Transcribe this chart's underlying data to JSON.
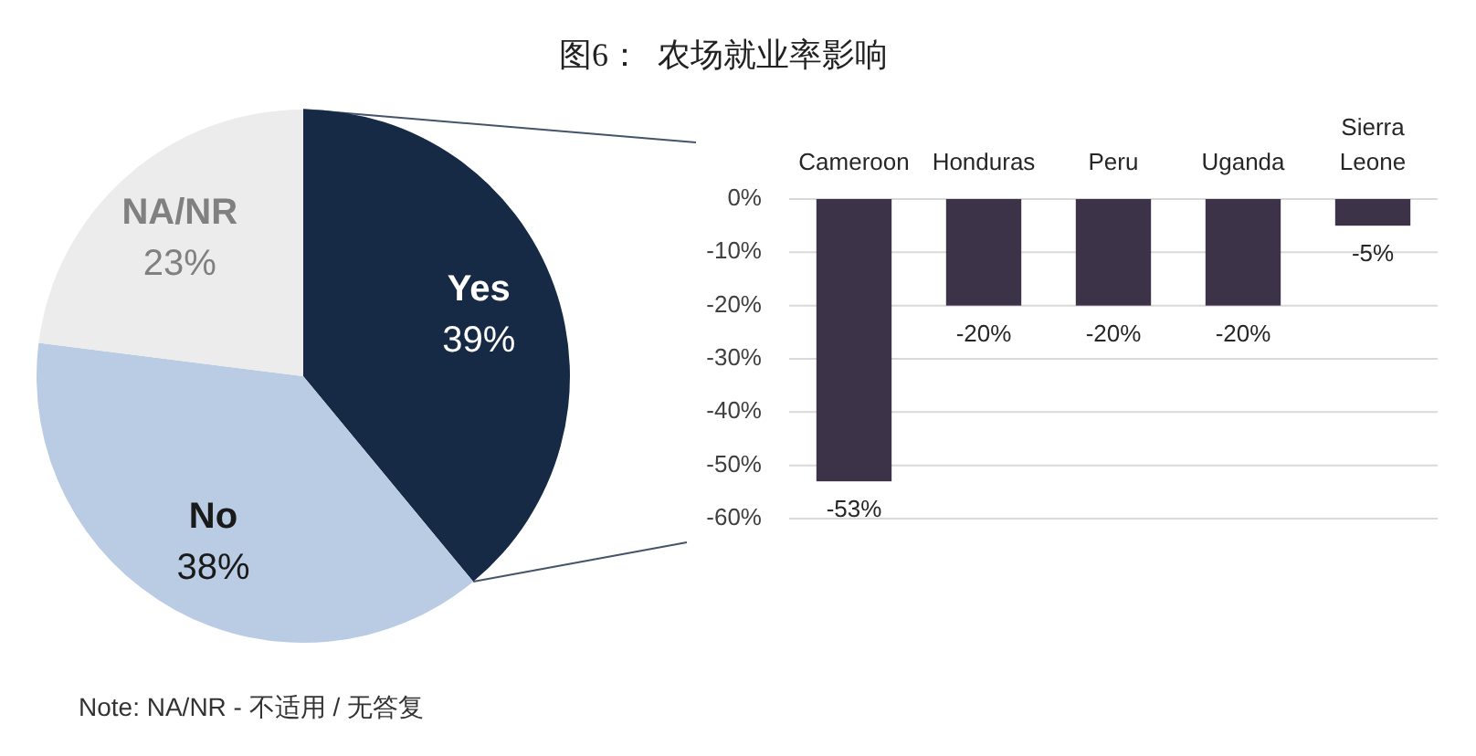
{
  "chart_data": [
    {
      "type": "pie",
      "title": "图6：  农场就业率影响",
      "annotations": [
        "Note: NA/NR - 不适用 / 无答复"
      ],
      "categories": [
        "Yes",
        "No",
        "NA/NR"
      ],
      "values": [
        39,
        38,
        23
      ],
      "colors": [
        "#172a45",
        "#b9cce4",
        "#ececec"
      ],
      "value_labels": [
        "39%",
        "38%",
        "23%"
      ]
    },
    {
      "type": "bar",
      "categories": [
        "Cameroon",
        "Honduras",
        "Peru",
        "Uganda",
        "Sierra Leone"
      ],
      "values": [
        -53,
        -20,
        -20,
        -20,
        -5
      ],
      "color": "#3d3349",
      "ylim": [
        -60,
        0
      ],
      "yticks": [
        {
          "value": 0,
          "label": "0%"
        },
        {
          "value": -10,
          "label": "-10%"
        },
        {
          "value": -20,
          "label": "-20%"
        },
        {
          "value": -30,
          "label": "-30%"
        },
        {
          "value": -40,
          "label": "-40%"
        },
        {
          "value": -50,
          "label": "-50%"
        },
        {
          "value": -60,
          "label": "-60%"
        }
      ],
      "grid": "y",
      "value_labels": [
        "-53%",
        "-20%",
        "-20%",
        "-20%",
        "-5%"
      ]
    }
  ]
}
